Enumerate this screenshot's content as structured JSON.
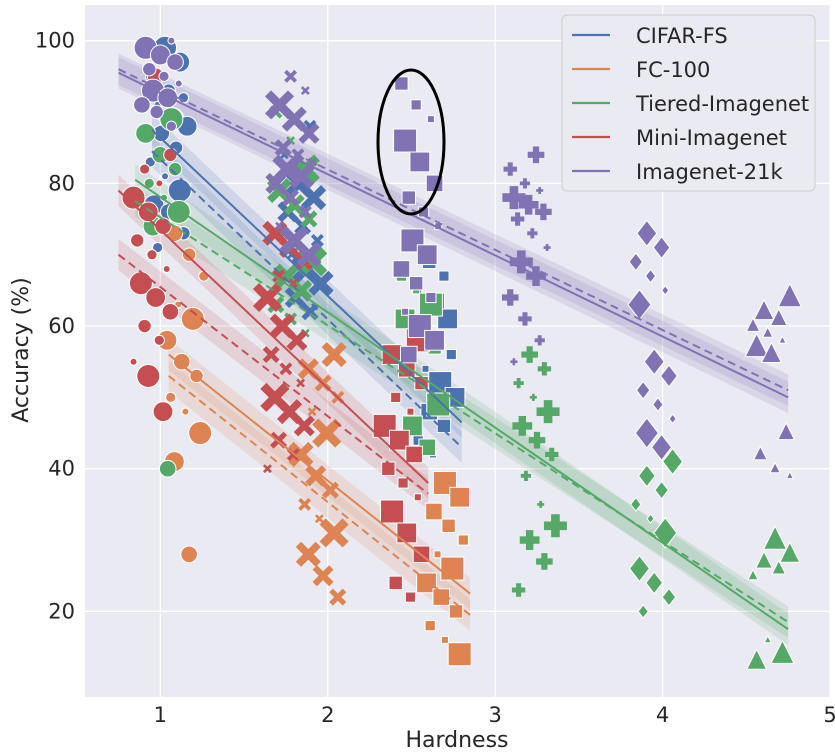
{
  "chart_data": {
    "type": "scatter",
    "xlabel": "Hardness",
    "ylabel": "Accuracy (%)",
    "xlim": [
      0.55,
      5.0
    ],
    "ylim": [
      8,
      105
    ],
    "xticks": [
      "1",
      "2",
      "3",
      "4",
      "5"
    ],
    "yticks": [
      "20",
      "40",
      "60",
      "80",
      "100"
    ],
    "grid": true,
    "legend_position": "top-right",
    "annotation": "ellipse around Imagenet-21k points at Hardness ≈ 2.5, Accuracy ≈ 76–95",
    "series": [
      {
        "name": "CIFAR-FS",
        "color": "#4c72b0",
        "fit_solid": [
          [
            0.95,
            87.5
          ],
          [
            2.8,
            46.5
          ]
        ],
        "fit_dashed": [
          [
            0.95,
            84.5
          ],
          [
            2.8,
            43.0
          ]
        ],
        "clusters": [
          {
            "x": 1.05,
            "marker": "circle",
            "ys": [
              100,
              99,
              97,
              95,
              93,
              92,
              91,
              89,
              88,
              87,
              85,
              83,
              81,
              79,
              77,
              76,
              73,
              71
            ]
          },
          {
            "x": 1.85,
            "marker": "x",
            "ys": [
              88,
              84,
              80,
              78,
              76,
              74,
              72,
              70,
              68,
              66,
              64,
              62
            ]
          },
          {
            "x": 2.65,
            "marker": "square",
            "ys": [
              69,
              67,
              65,
              63,
              61,
              59,
              58,
              56,
              54,
              52,
              50,
              48,
              46,
              44,
              42
            ]
          }
        ]
      },
      {
        "name": "FC-100",
        "color": "#dd8452",
        "fit_solid": [
          [
            1.05,
            56.0
          ],
          [
            2.85,
            22.5
          ]
        ],
        "fit_dashed": [
          [
            1.05,
            53.0
          ],
          [
            2.85,
            19.5
          ]
        ],
        "clusters": [
          {
            "x": 1.15,
            "marker": "circle",
            "ys": [
              73,
              70,
              67,
              63,
              61,
              58,
              55,
              53,
              50,
              48,
              45,
              41,
              28
            ]
          },
          {
            "x": 1.95,
            "marker": "x",
            "ys": [
              56,
              54,
              52,
              50,
              48,
              45,
              42,
              39,
              37,
              35,
              33,
              31,
              28,
              25,
              22
            ]
          },
          {
            "x": 2.7,
            "marker": "square",
            "ys": [
              38,
              36,
              34,
              32,
              30,
              28,
              26,
              24,
              22,
              20,
              18,
              16,
              14
            ]
          }
        ]
      },
      {
        "name": "Tiered-Imagenet",
        "color": "#55a868",
        "fit_solid": [
          [
            0.85,
            80.5
          ],
          [
            4.75,
            17.5
          ]
        ],
        "fit_dashed": [
          [
            0.85,
            77.5
          ],
          [
            4.75,
            18.5
          ]
        ],
        "clusters": [
          {
            "x": 1.0,
            "marker": "circle",
            "ys": [
              92,
              89,
              87,
              84,
              82,
              80,
              78,
              76,
              74,
              40
            ]
          },
          {
            "x": 1.8,
            "marker": "x",
            "ys": [
              90,
              86,
              82,
              79,
              77,
              75,
              73,
              71,
              69,
              67,
              65,
              63,
              61,
              59
            ]
          },
          {
            "x": 2.55,
            "marker": "square",
            "ys": [
              70,
              67,
              65,
              63,
              61,
              59,
              57,
              55,
              52,
              49,
              46,
              43
            ]
          },
          {
            "x": 3.25,
            "marker": "plus",
            "ys": [
              56,
              54,
              52,
              50,
              48,
              46,
              44,
              42,
              39,
              35,
              32,
              30,
              27,
              23
            ]
          },
          {
            "x": 3.95,
            "marker": "diamond",
            "ys": [
              41,
              39,
              37,
              35,
              33,
              31,
              26,
              24,
              22,
              20
            ]
          },
          {
            "x": 4.65,
            "marker": "triangle",
            "ys": [
              30,
              28,
              27,
              26,
              25,
              16,
              14,
              13
            ]
          }
        ]
      },
      {
        "name": "Mini-Imagenet",
        "color": "#c44e52",
        "fit_solid": [
          [
            0.75,
            79.0
          ],
          [
            2.6,
            38.0
          ]
        ],
        "fit_dashed": [
          [
            0.75,
            70.0
          ],
          [
            2.6,
            36.5
          ]
        ],
        "clusters": [
          {
            "x": 0.95,
            "marker": "circle",
            "ys": [
              95,
              84,
              82,
              80,
              78,
              76,
              74,
              72,
              70,
              68,
              66,
              64,
              62,
              60,
              58,
              55,
              53,
              48
            ]
          },
          {
            "x": 1.75,
            "marker": "x",
            "ys": [
              73,
              71,
              69,
              67,
              66,
              64,
              60,
              58,
              56,
              54,
              52,
              50,
              48,
              46,
              44,
              42,
              40
            ]
          },
          {
            "x": 2.45,
            "marker": "square",
            "ys": [
              58,
              56,
              54,
              52,
              50,
              48,
              46,
              44,
              42,
              40,
              38,
              36,
              34,
              31,
              28,
              24,
              22
            ]
          }
        ]
      },
      {
        "name": "Imagenet-21k",
        "color": "#8172b3",
        "fit_solid": [
          [
            0.75,
            95.5
          ],
          [
            4.75,
            50.0
          ]
        ],
        "fit_dashed": [
          [
            0.75,
            96.0
          ],
          [
            4.75,
            51.0
          ]
        ],
        "clusters": [
          {
            "x": 1.0,
            "marker": "circle",
            "ys": [
              100,
              99,
              98,
              97,
              96,
              95,
              94,
              93,
              92,
              91,
              90,
              88
            ]
          },
          {
            "x": 1.8,
            "marker": "x",
            "ys": [
              95,
              93,
              91,
              89,
              87,
              85,
              84,
              83,
              82,
              81,
              80,
              78,
              76,
              74,
              72,
              70
            ]
          },
          {
            "x": 2.55,
            "marker": "square",
            "ys": [
              94,
              91,
              89,
              86,
              83,
              80,
              78,
              76,
              74,
              72,
              70,
              68,
              66,
              64,
              62,
              60,
              58,
              56
            ]
          },
          {
            "x": 3.2,
            "marker": "plus",
            "ys": [
              84,
              82,
              80,
              79,
              78,
              77,
              76,
              75,
              73,
              71,
              69,
              67,
              64,
              61,
              58,
              55
            ]
          },
          {
            "x": 3.95,
            "marker": "diamond",
            "ys": [
              73,
              71,
              69,
              67,
              65,
              63,
              55,
              53,
              51,
              49,
              47,
              45,
              43
            ]
          },
          {
            "x": 4.65,
            "marker": "triangle",
            "ys": [
              64,
              62,
              61,
              60,
              59,
              58,
              57,
              56,
              45,
              42,
              40,
              39
            ]
          }
        ]
      }
    ]
  }
}
